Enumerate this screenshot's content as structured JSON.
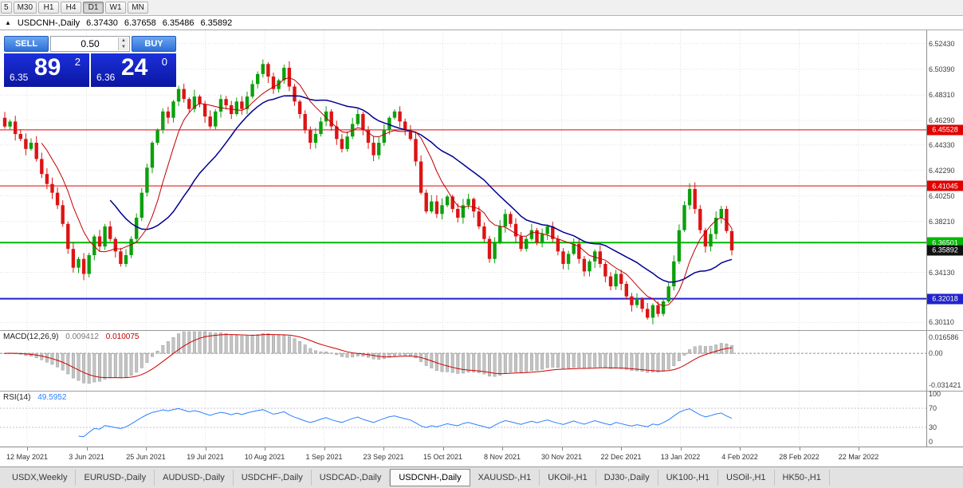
{
  "toolbar": {
    "timeframes": [
      "5",
      "M30",
      "H1",
      "H4",
      "D1",
      "W1",
      "MN"
    ],
    "active": "D1"
  },
  "chart_header": {
    "collapse_arrow": "▲",
    "title": "USDCNH-,Daily",
    "open": "6.37430",
    "high": "6.37658",
    "low": "6.35486",
    "close": "6.35892"
  },
  "trade_panel": {
    "sell_label": "SELL",
    "buy_label": "BUY",
    "volume": "0.50",
    "sell_price_small": "6.35",
    "sell_price_big": "89",
    "sell_price_sup": "2",
    "buy_price_small": "6.36",
    "buy_price_big": "24",
    "buy_price_sup": "0"
  },
  "price_axis": [
    {
      "v": 6.5243,
      "label": "6.52430"
    },
    {
      "v": 6.5039,
      "label": "6.50390"
    },
    {
      "v": 6.4831,
      "label": "6.48310"
    },
    {
      "v": 6.4629,
      "label": "6.46290"
    },
    {
      "v": 6.4433,
      "label": "6.44330"
    },
    {
      "v": 6.4229,
      "label": "6.42290"
    },
    {
      "v": 6.4025,
      "label": "6.40250"
    },
    {
      "v": 6.3821,
      "label": "6.38210"
    },
    {
      "v": 6.3617,
      "label": ""
    },
    {
      "v": 6.3413,
      "label": "6.34130"
    },
    {
      "v": 6.3209,
      "label": ""
    },
    {
      "v": 6.3011,
      "label": "6.30110"
    }
  ],
  "levels": [
    {
      "value": 6.45528,
      "label": "6.45528",
      "color": "#e00000",
      "line": true,
      "width": 1
    },
    {
      "value": 6.41045,
      "label": "6.41045",
      "color": "#e00000",
      "line": true,
      "width": 1
    },
    {
      "value": 6.36501,
      "label": "6.36501",
      "color": "#00b800",
      "line": true,
      "width": 2
    },
    {
      "value": 6.35892,
      "label": "6.35892",
      "color": "#111111",
      "line": false,
      "width": 0
    },
    {
      "value": 6.32018,
      "label": "6.32018",
      "color": "#2222cc",
      "line": true,
      "width": 2
    }
  ],
  "x_axis": {
    "dates": [
      "12 May 2021",
      "3 Jun 2021",
      "25 Jun 2021",
      "19 Jul 2021",
      "10 Aug 2021",
      "1 Sep 2021",
      "23 Sep 2021",
      "15 Oct 2021",
      "8 Nov 2021",
      "30 Nov 2021",
      "22 Dec 2021",
      "13 Jan 2022",
      "4 Feb 2022",
      "28 Feb 2022",
      "22 Mar 2022"
    ]
  },
  "macd": {
    "label": "MACD(12,26,9)",
    "value_main": "0.009412",
    "value_signal": "0.010075",
    "scale_top_label": "0.016586",
    "scale_zero_label": "0.00",
    "scale_bottom_label": "-0.031421",
    "scale_top": 0.016586,
    "scale_bottom": -0.031421
  },
  "rsi": {
    "label": "RSI(14)",
    "value": "49.5952",
    "levels": [
      70,
      30
    ],
    "scale_labels": [
      "100",
      "70",
      "30",
      "0"
    ]
  },
  "tabs": {
    "items": [
      "USDX,Weekly",
      "EURUSD-,Daily",
      "AUDUSD-,Daily",
      "USDCHF-,Daily",
      "USDCAD-,Daily",
      "USDCNH-,Daily",
      "XAUUSD-,H1",
      "UKOil-,H1",
      "DJ30-,Daily",
      "UK100-,H1",
      "USOil-,H1",
      "HK50-,H1"
    ],
    "active": "USDCNH-,Daily"
  },
  "chart_data": {
    "type": "candlestick",
    "symbol": "USDCNH-",
    "timeframe": "Daily",
    "ylim": [
      6.295,
      6.535
    ],
    "plot_fraction": 0.79,
    "first_open": 6.465,
    "closes": [
      6.458,
      6.462,
      6.452,
      6.448,
      6.44,
      6.445,
      6.432,
      6.42,
      6.412,
      6.405,
      6.395,
      6.38,
      6.36,
      6.345,
      6.352,
      6.34,
      6.355,
      6.37,
      6.362,
      6.378,
      6.368,
      6.358,
      6.348,
      6.355,
      6.368,
      6.385,
      6.405,
      6.425,
      6.445,
      6.455,
      6.47,
      6.465,
      6.478,
      6.488,
      6.48,
      6.472,
      6.482,
      6.476,
      6.466,
      6.458,
      6.47,
      6.48,
      6.475,
      6.468,
      6.478,
      6.472,
      6.482,
      6.492,
      6.5,
      6.508,
      6.498,
      6.488,
      6.495,
      6.505,
      6.49,
      6.478,
      6.468,
      6.455,
      6.445,
      6.452,
      6.462,
      6.47,
      6.458,
      6.448,
      6.44,
      6.45,
      6.46,
      6.468,
      6.455,
      6.445,
      6.435,
      6.445,
      6.455,
      6.465,
      6.47,
      6.462,
      6.455,
      6.448,
      6.43,
      6.405,
      6.39,
      6.398,
      6.388,
      6.395,
      6.402,
      6.392,
      6.385,
      6.395,
      6.4,
      6.39,
      6.378,
      6.368,
      6.352,
      6.365,
      6.378,
      6.388,
      6.38,
      6.37,
      6.36,
      6.368,
      6.375,
      6.365,
      6.372,
      6.378,
      6.368,
      6.358,
      6.348,
      6.356,
      6.364,
      6.352,
      6.342,
      6.35,
      6.358,
      6.348,
      6.338,
      6.33,
      6.34,
      6.332,
      6.322,
      6.315,
      6.32,
      6.312,
      6.305,
      6.315,
      6.308,
      6.318,
      6.33,
      6.35,
      6.375,
      6.395,
      6.408,
      6.392,
      6.375,
      6.362,
      6.372,
      6.385,
      6.392,
      6.3743,
      6.35892
    ],
    "last_candle": {
      "o": 6.3743,
      "h": 6.37658,
      "l": 6.35486,
      "c": 6.35892
    },
    "colors": {
      "up": "#0ca00c",
      "down": "#dc1414"
    },
    "ma_fast": {
      "period": 8,
      "color": "#c00000"
    },
    "ma_slow": {
      "period": 21,
      "color": "#000090"
    }
  }
}
